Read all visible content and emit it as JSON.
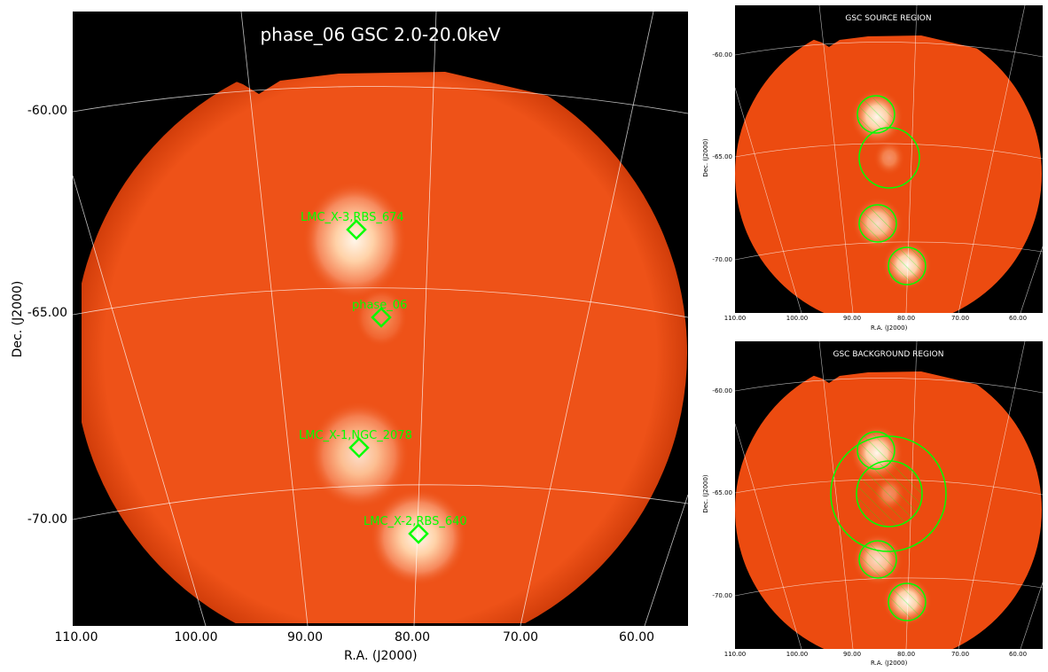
{
  "main": {
    "title": "phase_06 GSC 2.0-20.0keV",
    "xlabel": "R.A. (J2000)",
    "ylabel": "Dec. (J2000)",
    "xticks": [
      "110.00",
      "100.00",
      "90.00",
      "80.00",
      "70.00",
      "60.00"
    ],
    "yticks": [
      "-60.00",
      "-65.00",
      "-70.00"
    ],
    "sources": [
      {
        "label": "LMC_X-3,RBS_674"
      },
      {
        "label": "phase_06"
      },
      {
        "label": "LMC_X-1,NGC_2078"
      },
      {
        "label": "LMC_X-2,RBS_640"
      }
    ]
  },
  "source_panel": {
    "title": "GSC SOURCE REGION",
    "xlabel": "R.A. (J2000)",
    "ylabel": "Dec. (J2000)",
    "xticks": [
      "110.00",
      "100.00",
      "90.00",
      "80.00",
      "70.00",
      "60.00"
    ],
    "yticks": [
      "-60.00",
      "-65.00",
      "-70.00"
    ]
  },
  "background_panel": {
    "title": "GSC BACKGROUND REGION",
    "xlabel": "R.A. (J2000)",
    "ylabel": "Dec. (J2000)",
    "xticks": [
      "110.00",
      "100.00",
      "90.00",
      "80.00",
      "70.00",
      "60.00"
    ],
    "yticks": [
      "-60.00",
      "-65.00",
      "-70.00"
    ]
  },
  "colors": {
    "sky": "#ec4b10",
    "source_glow": "#fff3e0",
    "region": "#00ff00",
    "grid": "#ffffff",
    "background": "#000000"
  }
}
